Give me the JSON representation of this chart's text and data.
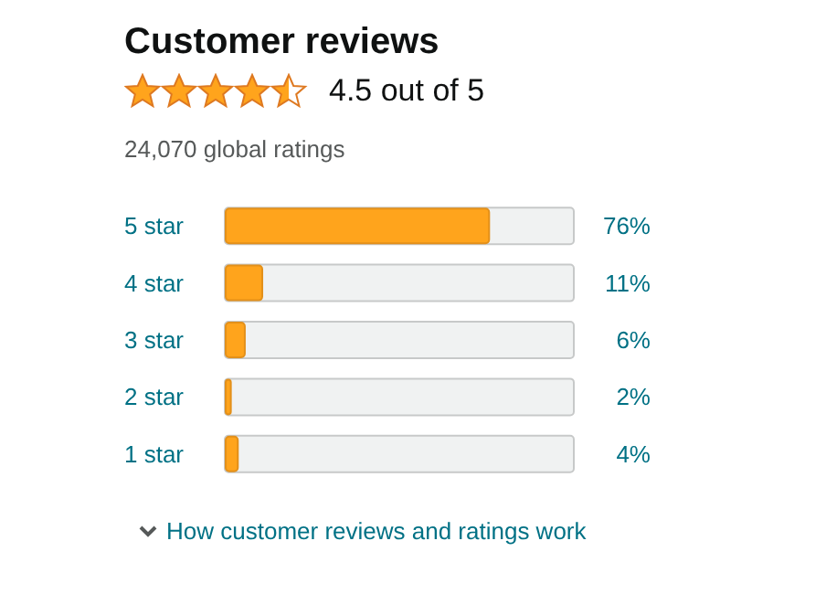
{
  "chart_data": {
    "type": "bar",
    "orientation": "horizontal",
    "title": "Customer reviews",
    "annotations": [
      "4.5 out of 5",
      "24,070 global ratings",
      "How customer reviews and ratings work"
    ],
    "categories": [
      "5 star",
      "4 star",
      "3 star",
      "2 star",
      "1 star"
    ],
    "values": [
      76,
      11,
      6,
      2,
      4
    ],
    "value_labels": [
      "76%",
      "11%",
      "6%",
      "2%",
      "4%"
    ],
    "color": "#ffa41c",
    "xlim": [
      0,
      100
    ],
    "tick_labels": "y"
  }
}
